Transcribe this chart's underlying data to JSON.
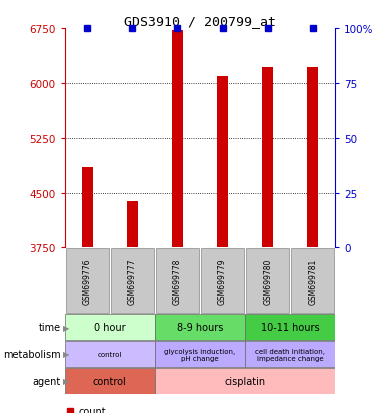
{
  "title": "GDS3910 / 200799_at",
  "samples": [
    "GSM699776",
    "GSM699777",
    "GSM699778",
    "GSM699779",
    "GSM699780",
    "GSM699781"
  ],
  "counts": [
    4850,
    4380,
    6720,
    6100,
    6220,
    6220
  ],
  "bar_color": "#cc0000",
  "percentile_color": "#0000cc",
  "y_min": 3750,
  "y_max": 6750,
  "y_ticks": [
    3750,
    4500,
    5250,
    6000,
    6750
  ],
  "y2_ticks": [
    0,
    25,
    50,
    75,
    100
  ],
  "time_groups": [
    {
      "label": "0 hour",
      "start": 0,
      "end": 2,
      "color": "#ccffcc"
    },
    {
      "label": "8-9 hours",
      "start": 2,
      "end": 4,
      "color": "#66dd66"
    },
    {
      "label": "10-11 hours",
      "start": 4,
      "end": 6,
      "color": "#44cc44"
    }
  ],
  "metabolism_groups": [
    {
      "label": "control",
      "start": 0,
      "end": 2,
      "color": "#ccbbff"
    },
    {
      "label": "glycolysis induction,\npH change",
      "start": 2,
      "end": 4,
      "color": "#bbaaff"
    },
    {
      "label": "cell death initiation,\nimpedance change",
      "start": 4,
      "end": 6,
      "color": "#bbaaff"
    }
  ],
  "agent_groups": [
    {
      "label": "control",
      "start": 0,
      "end": 2,
      "color": "#dd6655"
    },
    {
      "label": "cisplatin",
      "start": 2,
      "end": 6,
      "color": "#ffbbbb"
    }
  ],
  "row_labels": [
    "time",
    "metabolism",
    "agent"
  ],
  "bg_color": "#ffffff",
  "sample_bg_color": "#c8c8c8"
}
